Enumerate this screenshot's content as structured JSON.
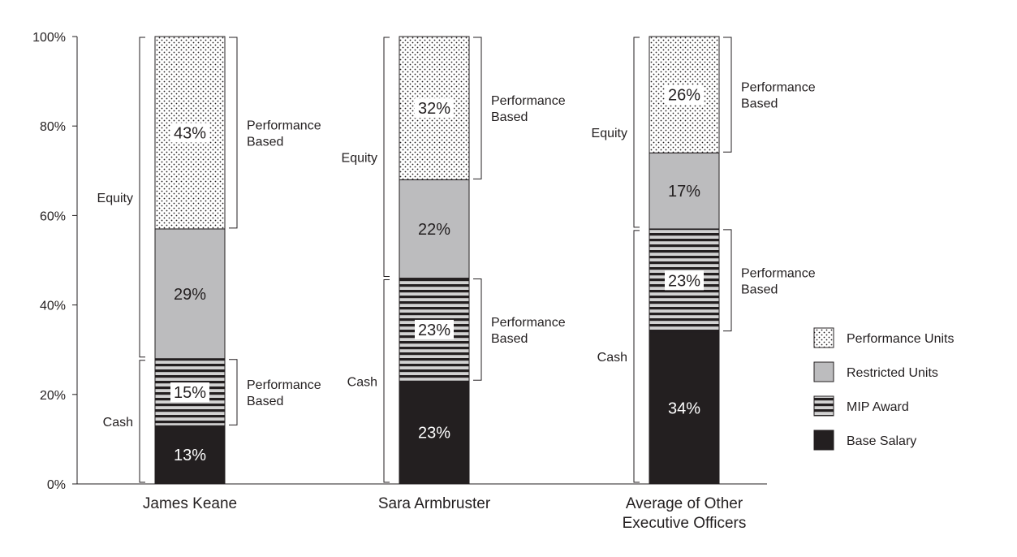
{
  "chart_data": {
    "type": "bar",
    "stacked": true,
    "ylim": [
      0,
      100
    ],
    "yticks": [
      "0%",
      "20%",
      "40%",
      "60%",
      "80%",
      "100%"
    ],
    "ytick_values": [
      0,
      20,
      40,
      60,
      80,
      100
    ],
    "grid": false,
    "legend_position": "right",
    "categories": [
      [
        "James Keane"
      ],
      [
        "Sara Armbruster"
      ],
      [
        "Average of Other",
        "Executive Officers"
      ]
    ],
    "series": [
      {
        "name": "Base Salary",
        "pattern": "solid-black",
        "values": [
          13,
          23,
          34
        ],
        "labels": [
          "13%",
          "23%",
          "34%"
        ]
      },
      {
        "name": "MIP Award",
        "pattern": "horizontal-stripes",
        "values": [
          15,
          23,
          23
        ],
        "labels": [
          "15%",
          "23%",
          "23%"
        ]
      },
      {
        "name": "Restricted Units",
        "pattern": "solid-gray",
        "values": [
          29,
          22,
          17
        ],
        "labels": [
          "29%",
          "22%",
          "17%"
        ]
      },
      {
        "name": "Performance Units",
        "pattern": "dots",
        "values": [
          43,
          32,
          26
        ],
        "labels": [
          "43%",
          "32%",
          "26%"
        ]
      }
    ],
    "legend_order": [
      "Performance Units",
      "Restricted Units",
      "MIP Award",
      "Base Salary"
    ],
    "group_annotations": {
      "left": {
        "equity": "Equity",
        "cash": "Cash"
      },
      "right": [
        "Performance",
        "Based"
      ]
    },
    "colors": {
      "base_salary": "#231f20",
      "restricted_units": "#bcbcbe",
      "stripe_dark": "#231f20",
      "stripe_light": "#d2d2d2",
      "dot": "#231f20",
      "text": "#231f20"
    }
  }
}
